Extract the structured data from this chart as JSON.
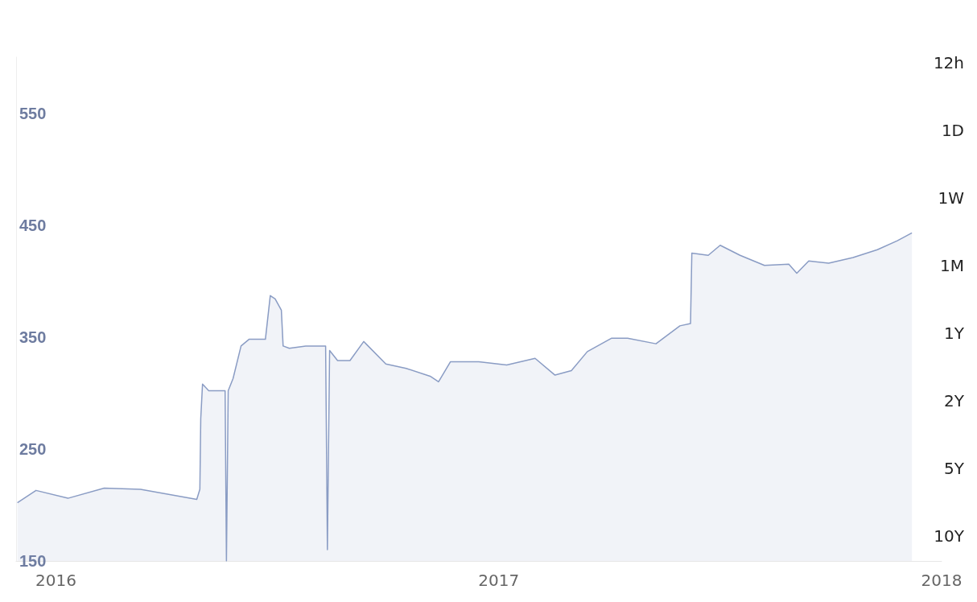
{
  "chart_data": {
    "type": "area",
    "color": "#8a9cc4",
    "x": [
      2015.913,
      2015.955,
      2016.027,
      2016.109,
      2016.191,
      2016.318,
      2016.325,
      2016.327,
      2016.331,
      2016.345,
      2016.382,
      2016.385,
      2016.389,
      2016.4,
      2016.418,
      2016.436,
      2016.473,
      2016.484,
      2016.495,
      2016.509,
      2016.513,
      2016.527,
      2016.564,
      2016.609,
      2016.613,
      2016.618,
      2016.636,
      2016.664,
      2016.695,
      2016.7,
      2016.745,
      2016.791,
      2016.845,
      2016.864,
      2016.891,
      2016.955,
      2017.018,
      2017.082,
      2017.127,
      2017.164,
      2017.2,
      2017.255,
      2017.291,
      2017.355,
      2017.409,
      2017.433,
      2017.436,
      2017.473,
      2017.5,
      2017.545,
      2017.6,
      2017.655,
      2017.673,
      2017.7,
      2017.745,
      2017.8,
      2017.855,
      2017.9,
      2017.933
    ],
    "values": [
      202,
      213,
      206,
      215,
      214,
      205,
      214,
      277,
      308,
      302,
      302,
      150,
      302,
      313,
      342,
      348,
      348,
      387,
      384,
      374,
      342,
      340,
      342,
      342,
      160,
      338,
      329,
      329,
      346,
      344,
      326,
      322,
      315,
      310,
      328,
      328,
      325,
      331,
      316,
      320,
      337,
      349,
      349,
      344,
      360,
      362,
      425,
      423,
      432,
      423,
      414,
      415,
      407,
      418,
      416,
      421,
      428,
      436,
      443
    ],
    "xlim": [
      2015.91,
      2018
    ],
    "xticks": [
      2016,
      2017,
      2018
    ],
    "ylim": [
      150,
      600
    ],
    "yticks": [
      150,
      250,
      350,
      450,
      550
    ],
    "grid": false,
    "marker": "none",
    "annotations": [
      "12h",
      "1D",
      "1W",
      "1M",
      "1Y",
      "2Y",
      "5Y",
      "10Y"
    ]
  }
}
